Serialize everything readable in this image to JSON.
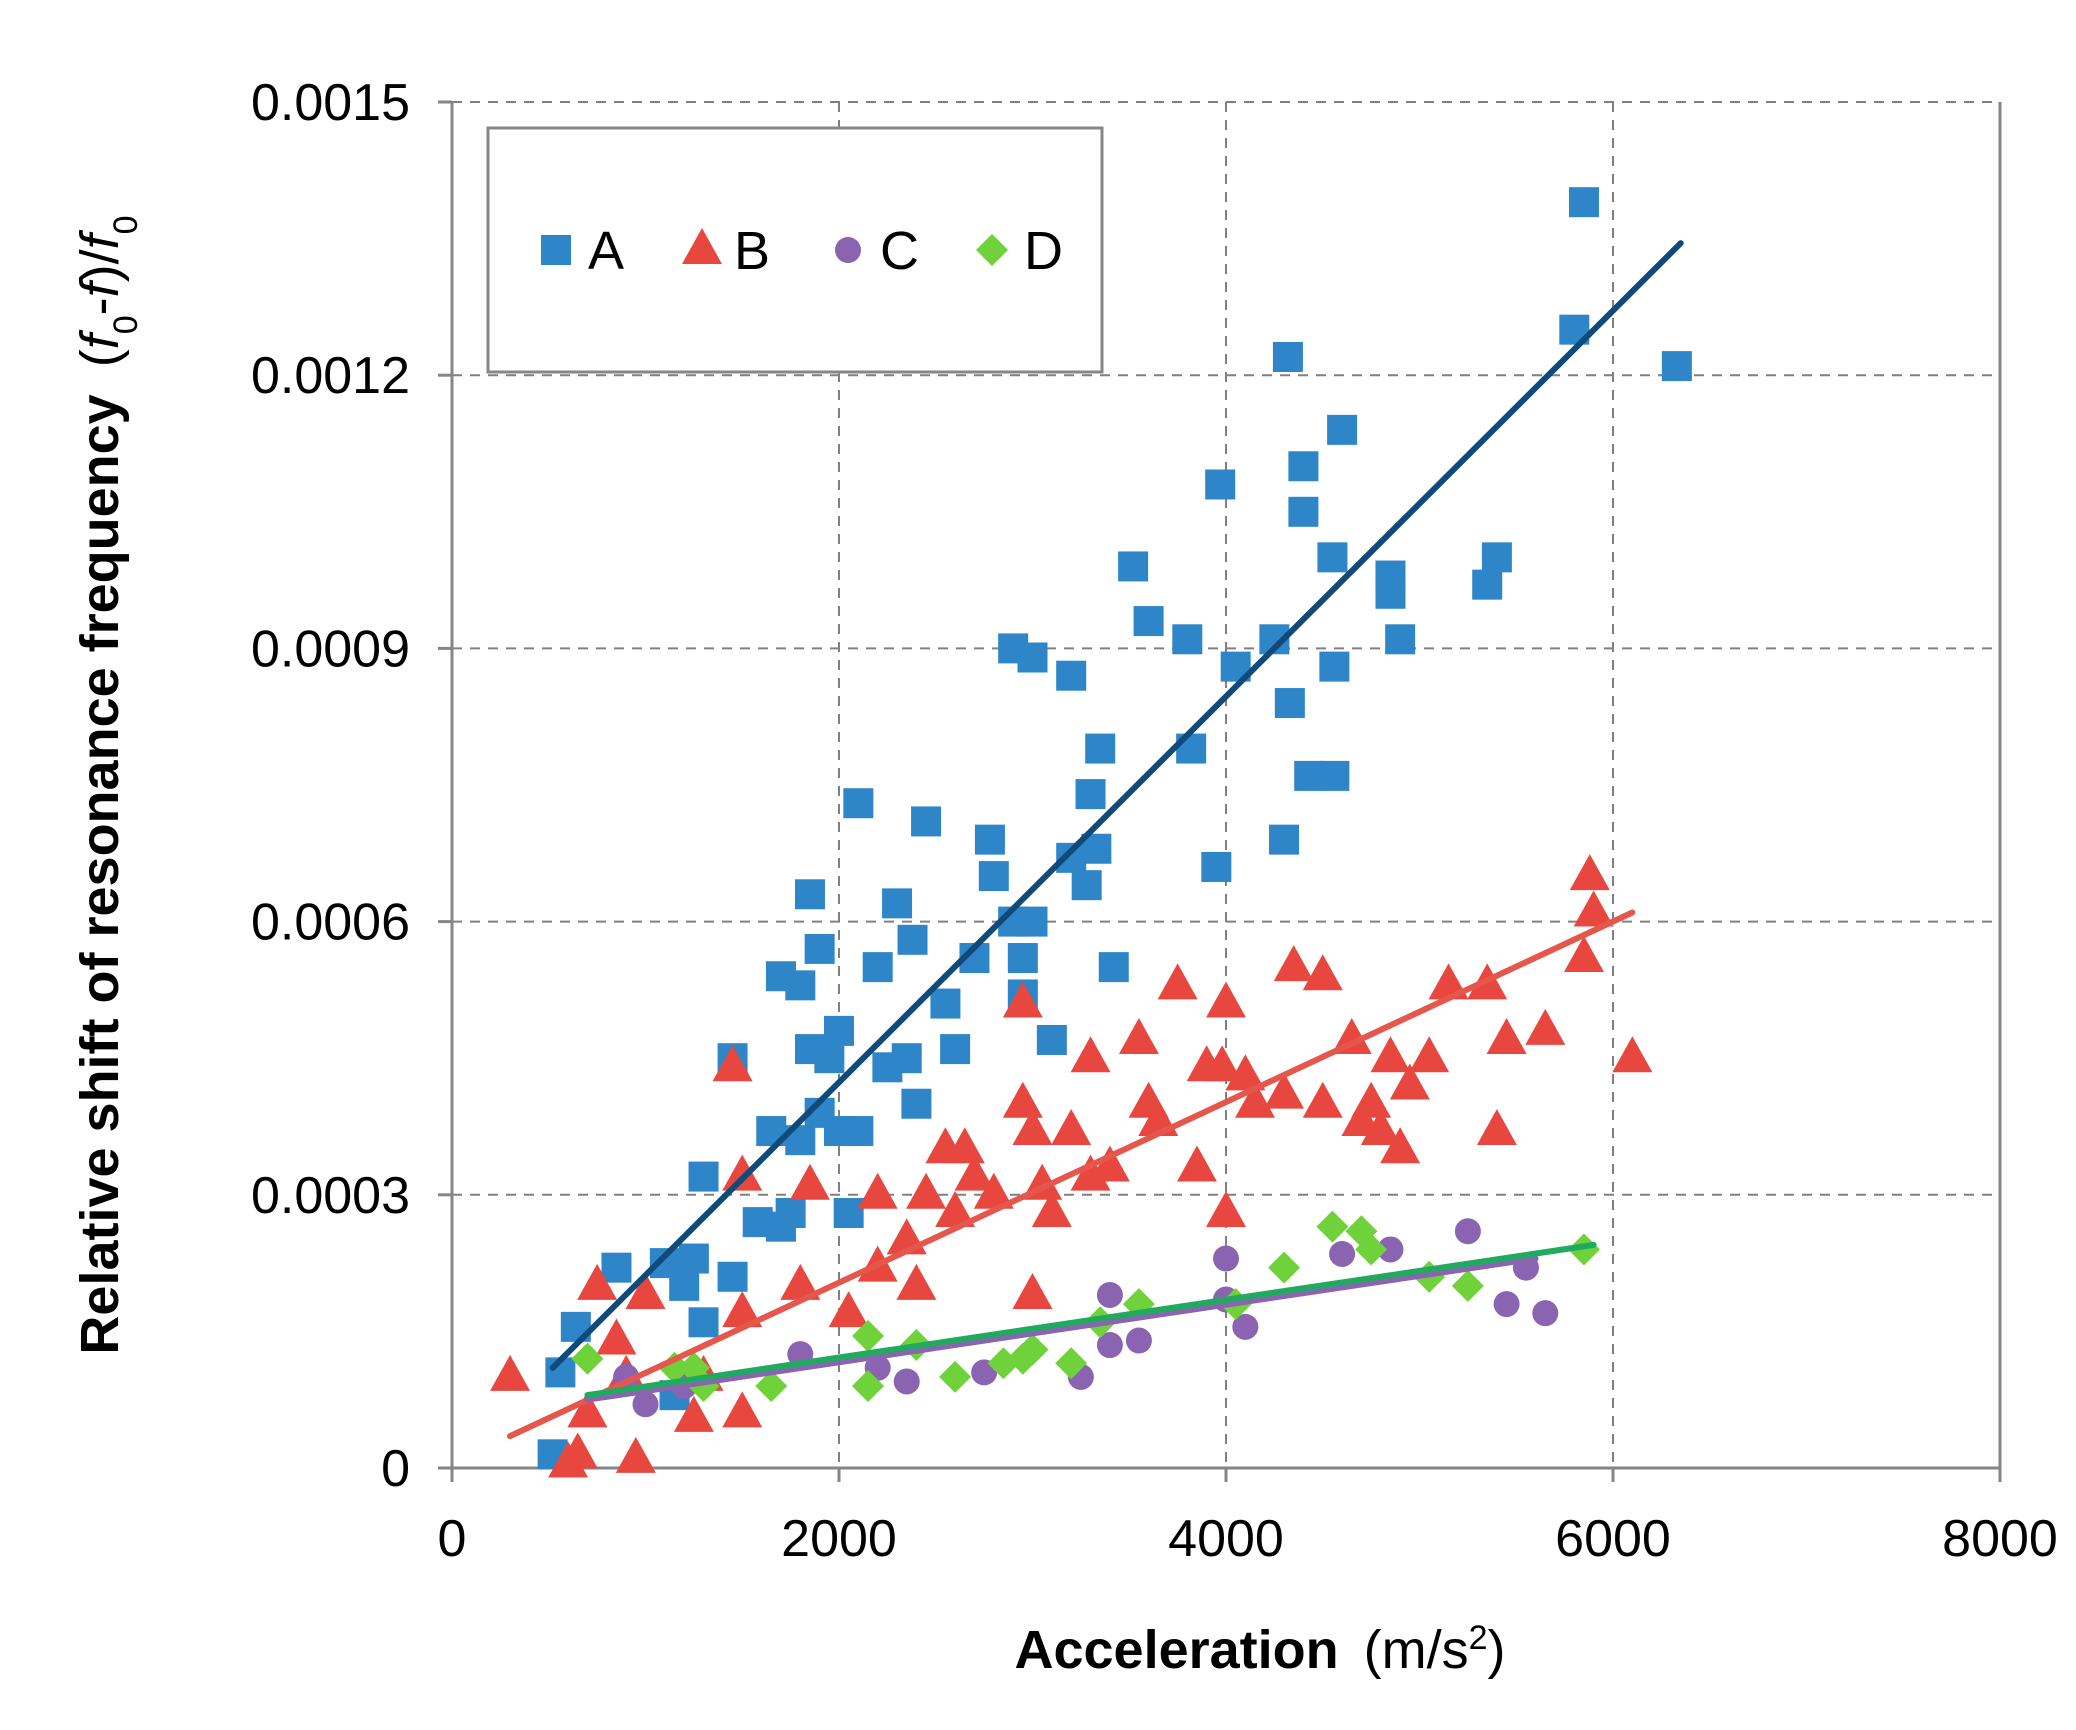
{
  "chart_data": {
    "type": "scatter",
    "title": "",
    "xlabel": {
      "main": "Acceleration",
      "units_prefix": "(m/s",
      "units_sup": "2",
      "units_suffix": ")"
    },
    "ylabel": {
      "main": "Relative shift of resonance frequency",
      "formula_prefix": "(",
      "f0a": "f",
      "sub0a": "0",
      "minus": "-",
      "f": "f",
      "close_slash": ")/",
      "f0b": "f",
      "sub0b": "0",
      "formula_suffix": ")"
    },
    "xlim": [
      0,
      8000
    ],
    "ylim": [
      0,
      0.0015
    ],
    "xticks": [
      0,
      2000,
      4000,
      6000,
      8000
    ],
    "yticks": [
      0,
      0.0003,
      0.0006,
      0.0009,
      0.0012,
      0.0015
    ],
    "xtick_labels": [
      "0",
      "2000",
      "4000",
      "6000",
      "8000"
    ],
    "ytick_labels": [
      "0",
      "0.0003",
      "0.0006",
      "0.0009",
      "0.0012",
      "0.0015"
    ],
    "grid": true,
    "legend": {
      "placement": "top-left",
      "entries": [
        "A",
        "B",
        "C",
        "D"
      ]
    },
    "series": [
      {
        "name": "A",
        "marker": "square",
        "color": "#2e86c8",
        "trend_color": "#0f4a7a",
        "trend": [
          [
            520,
            0.00011
          ],
          [
            6350,
            0.001345
          ]
        ],
        "points": [
          [
            520,
            1.5e-05
          ],
          [
            560,
            0.000105
          ],
          [
            640,
            0.000155
          ],
          [
            850,
            0.00022
          ],
          [
            1100,
            0.000225
          ],
          [
            1150,
            8e-05
          ],
          [
            1200,
            0.0002
          ],
          [
            1250,
            0.00023
          ],
          [
            1300,
            0.00016
          ],
          [
            1300,
            0.00032
          ],
          [
            1450,
            0.00021
          ],
          [
            1450,
            0.00045
          ],
          [
            1580,
            0.00027
          ],
          [
            1650,
            0.00037
          ],
          [
            1700,
            0.00054
          ],
          [
            1700,
            0.000265
          ],
          [
            1750,
            0.00028
          ],
          [
            1800,
            0.00053
          ],
          [
            1800,
            0.00036
          ],
          [
            1850,
            0.00063
          ],
          [
            1850,
            0.00046
          ],
          [
            1900,
            0.00057
          ],
          [
            1900,
            0.00039
          ],
          [
            1950,
            0.00045
          ],
          [
            2000,
            0.00048
          ],
          [
            2000,
            0.00037
          ],
          [
            2050,
            0.00028
          ],
          [
            2100,
            0.00037
          ],
          [
            2100,
            0.00073
          ],
          [
            2200,
            0.00055
          ],
          [
            2250,
            0.00044
          ],
          [
            2300,
            0.00062
          ],
          [
            2350,
            0.00045
          ],
          [
            2380,
            0.00058
          ],
          [
            2400,
            0.0004
          ],
          [
            2450,
            0.00071
          ],
          [
            2550,
            0.00051
          ],
          [
            2600,
            0.00046
          ],
          [
            2700,
            0.00056
          ],
          [
            2780,
            0.00069
          ],
          [
            2800,
            0.00065
          ],
          [
            2900,
            0.0009
          ],
          [
            2900,
            0.0006
          ],
          [
            2950,
            0.00052
          ],
          [
            2950,
            0.00056
          ],
          [
            3000,
            0.00089
          ],
          [
            3000,
            0.0006
          ],
          [
            3100,
            0.00047
          ],
          [
            3200,
            0.00087
          ],
          [
            3200,
            0.00067
          ],
          [
            3280,
            0.00064
          ],
          [
            3300,
            0.00074
          ],
          [
            3330,
            0.00068
          ],
          [
            3350,
            0.00079
          ],
          [
            3420,
            0.00055
          ],
          [
            3520,
            0.00099
          ],
          [
            3600,
            0.00093
          ],
          [
            3800,
            0.00091
          ],
          [
            3820,
            0.00079
          ],
          [
            3950,
            0.00066
          ],
          [
            3970,
            0.00108
          ],
          [
            4050,
            0.00088
          ],
          [
            4250,
            0.00091
          ],
          [
            4300,
            0.00069
          ],
          [
            4320,
            0.00122
          ],
          [
            4330,
            0.00084
          ],
          [
            4400,
            0.0011
          ],
          [
            4400,
            0.00105
          ],
          [
            4430,
            0.00076
          ],
          [
            4550,
            0.001
          ],
          [
            4560,
            0.00076
          ],
          [
            4560,
            0.00088
          ],
          [
            4600,
            0.00114
          ],
          [
            4850,
            0.00096
          ],
          [
            4850,
            0.00098
          ],
          [
            4900,
            0.00091
          ],
          [
            5350,
            0.00097
          ],
          [
            5400,
            0.001
          ],
          [
            5800,
            0.00125
          ],
          [
            5850,
            0.00139
          ],
          [
            6330,
            0.00121
          ]
        ]
      },
      {
        "name": "B",
        "marker": "triangle",
        "color": "#e8473f",
        "trend_color": "#e5574c",
        "trend": [
          [
            300,
            3.5e-05
          ],
          [
            6100,
            0.00061
          ]
        ],
        "points": [
          [
            300,
            0.0001
          ],
          [
            600,
            5e-06
          ],
          [
            650,
            1.5e-05
          ],
          [
            700,
            6e-05
          ],
          [
            750,
            0.0002
          ],
          [
            850,
            0.00014
          ],
          [
            900,
            0.0001
          ],
          [
            950,
            1e-05
          ],
          [
            1000,
            0.00019
          ],
          [
            1250,
            5.5e-05
          ],
          [
            1300,
            0.0001
          ],
          [
            1450,
            0.00044
          ],
          [
            1500,
            6e-05
          ],
          [
            1500,
            0.00017
          ],
          [
            1500,
            0.00032
          ],
          [
            1800,
            0.0002
          ],
          [
            1850,
            0.00031
          ],
          [
            2050,
            0.00017
          ],
          [
            2200,
            0.0003
          ],
          [
            2200,
            0.00022
          ],
          [
            2350,
            0.00025
          ],
          [
            2400,
            0.0002
          ],
          [
            2450,
            0.0003
          ],
          [
            2550,
            0.00035
          ],
          [
            2600,
            0.00028
          ],
          [
            2650,
            0.00035
          ],
          [
            2700,
            0.00032
          ],
          [
            2800,
            0.0003
          ],
          [
            2950,
            0.0004
          ],
          [
            2950,
            0.00051
          ],
          [
            3000,
            0.00019
          ],
          [
            3000,
            0.00037
          ],
          [
            3050,
            0.00031
          ],
          [
            3100,
            0.00028
          ],
          [
            3200,
            0.00037
          ],
          [
            3300,
            0.00045
          ],
          [
            3300,
            0.00032
          ],
          [
            3400,
            0.00033
          ],
          [
            3550,
            0.00047
          ],
          [
            3600,
            0.0004
          ],
          [
            3650,
            0.00038
          ],
          [
            3750,
            0.00053
          ],
          [
            3850,
            0.00033
          ],
          [
            3900,
            0.00044
          ],
          [
            3980,
            0.00044
          ],
          [
            4000,
            0.00051
          ],
          [
            4000,
            0.00028
          ],
          [
            4100,
            0.00043
          ],
          [
            4150,
            0.0004
          ],
          [
            4300,
            0.00041
          ],
          [
            4350,
            0.00055
          ],
          [
            4500,
            0.00054
          ],
          [
            4500,
            0.0004
          ],
          [
            4650,
            0.00047
          ],
          [
            4700,
            0.00038
          ],
          [
            4750,
            0.0004
          ],
          [
            4800,
            0.00037
          ],
          [
            4850,
            0.00045
          ],
          [
            4900,
            0.00035
          ],
          [
            4950,
            0.00042
          ],
          [
            5050,
            0.00045
          ],
          [
            5150,
            0.00053
          ],
          [
            5350,
            0.00053
          ],
          [
            5400,
            0.00037
          ],
          [
            5450,
            0.00047
          ],
          [
            5650,
            0.00048
          ],
          [
            5850,
            0.00056
          ],
          [
            5880,
            0.00065
          ],
          [
            5900,
            0.00061
          ],
          [
            6100,
            0.00045
          ]
        ]
      },
      {
        "name": "C",
        "marker": "circle",
        "color": "#8a64b0",
        "trend_color": "#8a64b0",
        "trend": [
          [
            700,
            7.5e-05
          ],
          [
            5600,
            0.00023
          ]
        ],
        "points": [
          [
            900,
            0.0001
          ],
          [
            1000,
            7e-05
          ],
          [
            1200,
            9e-05
          ],
          [
            1800,
            0.000125
          ],
          [
            2200,
            0.00011
          ],
          [
            2350,
            9.5e-05
          ],
          [
            2750,
            0.000105
          ],
          [
            3250,
            0.0001
          ],
          [
            3400,
            0.00019
          ],
          [
            3400,
            0.000135
          ],
          [
            3550,
            0.00014
          ],
          [
            4000,
            0.00023
          ],
          [
            4000,
            0.000185
          ],
          [
            4100,
            0.000155
          ],
          [
            4600,
            0.000235
          ],
          [
            4850,
            0.00024
          ],
          [
            5250,
            0.00026
          ],
          [
            5450,
            0.00018
          ],
          [
            5550,
            0.00022
          ],
          [
            5650,
            0.00017
          ]
        ]
      },
      {
        "name": "D",
        "marker": "diamond",
        "color": "#6fd23b",
        "trend_color": "#22a960",
        "trend": [
          [
            700,
            8e-05
          ],
          [
            5900,
            0.000245
          ]
        ],
        "points": [
          [
            700,
            0.00012
          ],
          [
            1150,
            0.00011
          ],
          [
            1250,
            0.00011
          ],
          [
            1300,
            9e-05
          ],
          [
            1650,
            9e-05
          ],
          [
            2150,
            0.000145
          ],
          [
            2150,
            9e-05
          ],
          [
            2400,
            0.000135
          ],
          [
            2600,
            0.0001
          ],
          [
            2850,
            0.000115
          ],
          [
            2950,
            0.00012
          ],
          [
            3000,
            0.00013
          ],
          [
            3200,
            0.000115
          ],
          [
            3350,
            0.00016
          ],
          [
            3550,
            0.00018
          ],
          [
            4050,
            0.00018
          ],
          [
            4300,
            0.00022
          ],
          [
            4550,
            0.000265
          ],
          [
            4700,
            0.00026
          ],
          [
            4750,
            0.00024
          ],
          [
            5050,
            0.00021
          ],
          [
            5250,
            0.0002
          ],
          [
            5850,
            0.00024
          ]
        ]
      }
    ]
  }
}
